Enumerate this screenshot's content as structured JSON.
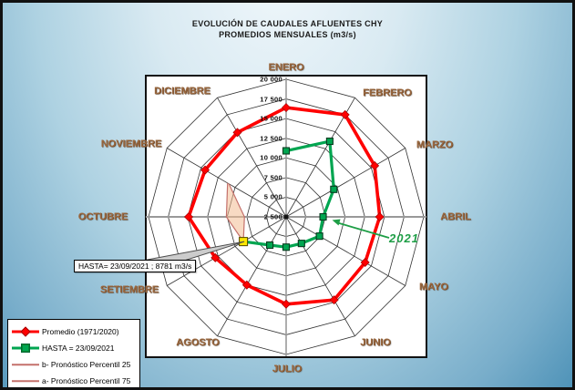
{
  "title": {
    "line1": "EVOLUCIÓN DE CAUDALES AFLUENTES CHY",
    "line2": "PROMEDIOS MENSUALES (m3/s)"
  },
  "chart_data": {
    "type": "radar",
    "categories": [
      "ENERO",
      "FEBRERO",
      "MARZO",
      "ABRIL",
      "MAYO",
      "JUNIO",
      "JULIO",
      "AGOSTO",
      "SETIEMBRE",
      "OCTUBRE",
      "NOVIEMBRE",
      "DICIEMBRE"
    ],
    "axis": {
      "min": 2500,
      "max": 20000,
      "step": 2500,
      "tick_labels": [
        "20 000",
        "17 500",
        "15 000",
        "12 500",
        "10 000",
        "7 500",
        "5 000",
        "2 500"
      ],
      "tick_values": [
        20000,
        17500,
        15000,
        12500,
        10000,
        7500,
        5000,
        2500
      ],
      "grid": "spider-web"
    },
    "series": [
      {
        "name": "Promedio (1971/2020)",
        "shape": "closed",
        "color": "#FF0000",
        "marker": "diamond",
        "start_month": "ENERO",
        "values": [
          16400,
          17500,
          15500,
          14400,
          14100,
          14700,
          13600,
          12500,
          12900,
          14900,
          14400,
          14900
        ]
      },
      {
        "name": "HASTA = 23/09/2021",
        "shape": "open",
        "color": "#00A550",
        "marker": "square",
        "start_month": "ENERO",
        "values": [
          10900,
          13600,
          9500,
          7200,
          7400,
          6400,
          6350,
          6650,
          8781
        ]
      },
      {
        "name": "b- Pronóstico Percentil 25",
        "shape": "open",
        "color": "#C4706B",
        "marker": "none",
        "start_month": "SETIEMBRE",
        "values": [
          8781,
          7800,
          10900
        ]
      },
      {
        "name": "a- Pronóstico Percentil 75",
        "shape": "open",
        "color": "#C4706B",
        "marker": "none",
        "start_month": "SETIEMBRE",
        "values": [
          8781,
          10100,
          11100
        ]
      }
    ],
    "forecast_band": {
      "fill": "#F2BB92",
      "between": [
        "b- Pronóstico Percentil 25",
        "a- Pronóstico Percentil 75"
      ]
    },
    "highlight_point": {
      "series": "HASTA = 23/09/2021",
      "month": "SETIEMBRE",
      "value": 8781,
      "marker_color": "#FFE800"
    },
    "legend_position": "bottom-left"
  },
  "legend": {
    "items": [
      {
        "label": "Promedio (1971/2020)",
        "color": "#FF0000",
        "marker": "diamond"
      },
      {
        "label": "HASTA = 23/09/2021",
        "color": "#00A550",
        "marker": "square"
      },
      {
        "label": "b- Pronóstico Percentil 25",
        "color": "#C4706B",
        "marker": "none"
      },
      {
        "label": "a- Pronóstico Percentil 75",
        "color": "#C4706B",
        "marker": "none"
      }
    ]
  },
  "callout": {
    "text": "HASTA= 23/09/2021 ; 8781 m3/s"
  },
  "annotation": {
    "text": "2021",
    "color": "#1E9E46"
  }
}
